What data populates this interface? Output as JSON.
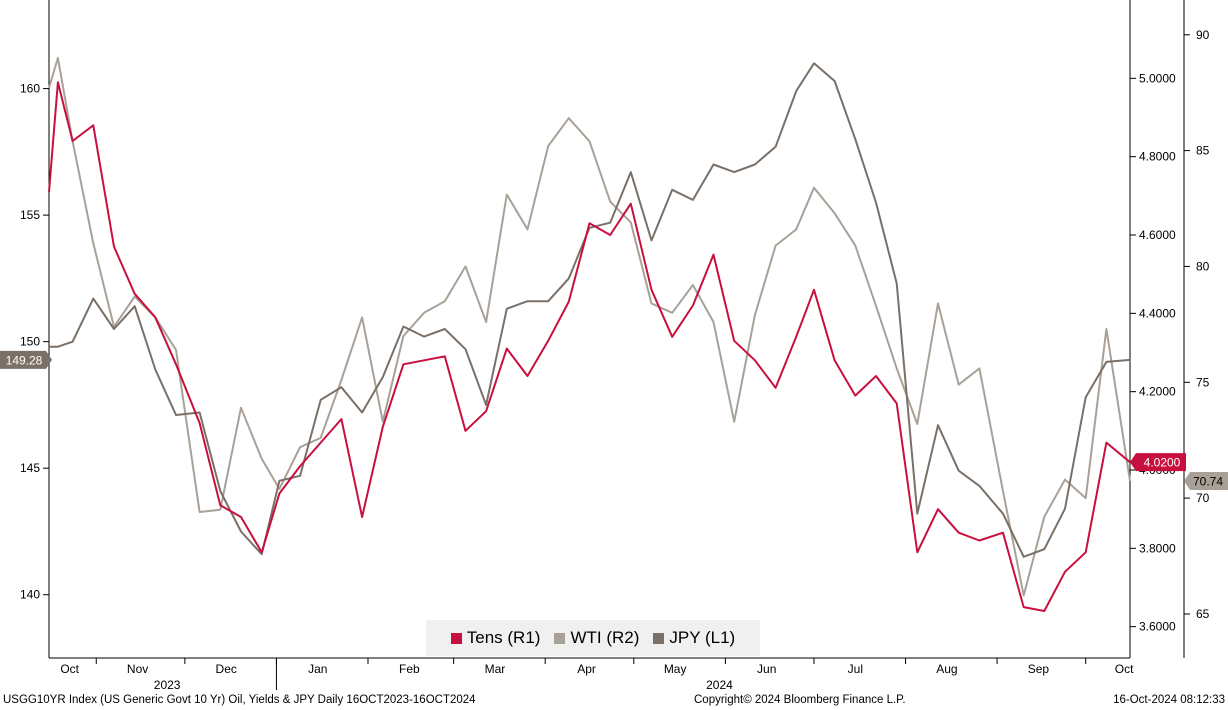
{
  "chart_data": {
    "type": "line",
    "x_tick_labels": [
      "Oct",
      "Nov",
      "Dec",
      "Jan",
      "Feb",
      "Mar",
      "Apr",
      "May",
      "Jun",
      "Jul",
      "Aug",
      "Sep",
      "Oct"
    ],
    "x_year_labels": [
      "2023",
      "2024"
    ],
    "x_start": "2023-10-16",
    "x_end": "2024-10-16",
    "axes": {
      "left": {
        "ticks": [
          "160",
          "155",
          "150",
          "145",
          "140"
        ],
        "range": [
          137.5,
          163.5
        ]
      },
      "right1": {
        "ticks": [
          "5.0000",
          "4.8000",
          "4.6000",
          "4.4000",
          "4.2000",
          "4.0000",
          "3.8000",
          "3.6000"
        ],
        "range": [
          3.52,
          5.2
        ]
      },
      "right2": {
        "ticks": [
          "90",
          "85",
          "80",
          "75",
          "70",
          "65"
        ],
        "range": [
          63.1,
          91.5
        ]
      }
    },
    "last_value_labels": {
      "JPY": "149.28",
      "Tens": "4.0200",
      "WTI": "70.74"
    },
    "series": [
      {
        "name": "Tens (R1)",
        "axis": "right1",
        "color": "#c8103e",
        "dates": [
          "2023-10-16",
          "2023-10-19",
          "2023-10-24",
          "2023-10-31",
          "2023-11-07",
          "2023-11-14",
          "2023-11-21",
          "2023-11-28",
          "2023-12-06",
          "2023-12-13",
          "2023-12-20",
          "2023-12-27",
          "2024-01-02",
          "2024-01-09",
          "2024-01-16",
          "2024-01-23",
          "2024-01-30",
          "2024-02-06",
          "2024-02-13",
          "2024-02-20",
          "2024-02-27",
          "2024-03-05",
          "2024-03-12",
          "2024-03-19",
          "2024-03-26",
          "2024-04-02",
          "2024-04-09",
          "2024-04-16",
          "2024-04-23",
          "2024-04-30",
          "2024-05-07",
          "2024-05-14",
          "2024-05-21",
          "2024-05-28",
          "2024-06-04",
          "2024-06-11",
          "2024-06-18",
          "2024-06-25",
          "2024-07-01",
          "2024-07-08",
          "2024-07-15",
          "2024-07-22",
          "2024-07-29",
          "2024-08-05",
          "2024-08-12",
          "2024-08-19",
          "2024-08-26",
          "2024-09-03",
          "2024-09-10",
          "2024-09-17",
          "2024-09-24",
          "2024-10-01",
          "2024-10-08",
          "2024-10-16"
        ],
        "values": [
          4.71,
          4.99,
          4.84,
          4.88,
          4.57,
          4.45,
          4.39,
          4.27,
          4.12,
          3.91,
          3.88,
          3.79,
          3.94,
          4.01,
          4.07,
          4.13,
          3.88,
          4.11,
          4.27,
          4.28,
          4.29,
          4.1,
          4.15,
          4.31,
          4.24,
          4.33,
          4.43,
          4.63,
          4.6,
          4.68,
          4.46,
          4.34,
          4.42,
          4.55,
          4.33,
          4.28,
          4.21,
          4.34,
          4.46,
          4.28,
          4.19,
          4.24,
          4.17,
          3.79,
          3.9,
          3.84,
          3.82,
          3.84,
          3.65,
          3.64,
          3.74,
          3.79,
          4.07,
          4.02
        ]
      },
      {
        "name": "WTI (R2)",
        "axis": "right2",
        "color": "#a9a197",
        "dates": [
          "2023-10-16",
          "2023-10-19",
          "2023-10-24",
          "2023-10-31",
          "2023-11-07",
          "2023-11-14",
          "2023-11-21",
          "2023-11-28",
          "2023-12-06",
          "2023-12-13",
          "2023-12-20",
          "2023-12-27",
          "2024-01-02",
          "2024-01-09",
          "2024-01-16",
          "2024-01-23",
          "2024-01-30",
          "2024-02-06",
          "2024-02-13",
          "2024-02-20",
          "2024-02-27",
          "2024-03-05",
          "2024-03-12",
          "2024-03-19",
          "2024-03-26",
          "2024-04-02",
          "2024-04-09",
          "2024-04-16",
          "2024-04-23",
          "2024-04-30",
          "2024-05-07",
          "2024-05-14",
          "2024-05-21",
          "2024-05-28",
          "2024-06-04",
          "2024-06-11",
          "2024-06-18",
          "2024-06-25",
          "2024-07-01",
          "2024-07-08",
          "2024-07-15",
          "2024-07-22",
          "2024-07-29",
          "2024-08-05",
          "2024-08-12",
          "2024-08-19",
          "2024-08-26",
          "2024-09-03",
          "2024-09-10",
          "2024-09-17",
          "2024-09-24",
          "2024-10-01",
          "2024-10-08",
          "2024-10-16"
        ],
        "values": [
          87.7,
          89.0,
          85.4,
          81.0,
          77.4,
          78.7,
          77.8,
          76.4,
          69.4,
          69.5,
          73.9,
          71.7,
          70.4,
          72.2,
          72.6,
          75.1,
          77.8,
          73.3,
          77.0,
          78.0,
          78.5,
          80.0,
          77.6,
          83.1,
          81.6,
          85.2,
          86.4,
          85.4,
          82.8,
          81.9,
          78.4,
          78.0,
          79.2,
          77.6,
          73.3,
          77.9,
          80.9,
          81.6,
          83.4,
          82.3,
          80.9,
          78.3,
          75.6,
          73.2,
          78.4,
          74.9,
          75.6,
          70.3,
          65.8,
          69.2,
          70.8,
          70.0,
          77.3,
          70.74
        ]
      },
      {
        "name": "JPY (L1)",
        "axis": "left",
        "color": "#7b7067",
        "dates": [
          "2023-10-16",
          "2023-10-19",
          "2023-10-24",
          "2023-10-31",
          "2023-11-07",
          "2023-11-14",
          "2023-11-21",
          "2023-11-28",
          "2023-12-06",
          "2023-12-13",
          "2023-12-20",
          "2023-12-27",
          "2024-01-02",
          "2024-01-09",
          "2024-01-16",
          "2024-01-23",
          "2024-01-30",
          "2024-02-06",
          "2024-02-13",
          "2024-02-20",
          "2024-02-27",
          "2024-03-05",
          "2024-03-12",
          "2024-03-19",
          "2024-03-26",
          "2024-04-02",
          "2024-04-09",
          "2024-04-16",
          "2024-04-23",
          "2024-04-30",
          "2024-05-07",
          "2024-05-14",
          "2024-05-21",
          "2024-05-28",
          "2024-06-04",
          "2024-06-11",
          "2024-06-18",
          "2024-06-25",
          "2024-07-01",
          "2024-07-08",
          "2024-07-15",
          "2024-07-22",
          "2024-07-29",
          "2024-08-05",
          "2024-08-12",
          "2024-08-19",
          "2024-08-26",
          "2024-09-03",
          "2024-09-10",
          "2024-09-17",
          "2024-09-24",
          "2024-10-01",
          "2024-10-08",
          "2024-10-16"
        ],
        "values": [
          149.8,
          149.8,
          150.0,
          151.7,
          150.5,
          151.4,
          148.9,
          147.1,
          147.2,
          144.1,
          142.5,
          141.6,
          144.5,
          144.7,
          147.7,
          148.2,
          147.2,
          148.6,
          150.6,
          150.2,
          150.5,
          149.7,
          147.5,
          151.3,
          151.6,
          151.6,
          152.5,
          154.5,
          154.7,
          156.7,
          154.0,
          156.0,
          155.6,
          157.0,
          156.7,
          157.0,
          157.7,
          159.9,
          161.0,
          160.3,
          158.0,
          155.5,
          152.3,
          143.2,
          146.7,
          144.9,
          144.3,
          143.2,
          141.5,
          141.8,
          143.4,
          147.8,
          149.2,
          149.28
        ]
      }
    ],
    "legend_placement": "bottom-center",
    "grid": false
  },
  "legend": [
    {
      "label": "Tens (R1)",
      "color": "#c8103e"
    },
    {
      "label": "WTI (R2)",
      "color": "#a9a197"
    },
    {
      "label": "JPY (L1)",
      "color": "#7b7067"
    }
  ],
  "footer": {
    "left": "USGG10YR Index (US Generic Govt 10 Yr) Oil, Yields & JPY  Daily 16OCT2023-16OCT2024",
    "center": "Copyright© 2024 Bloomberg Finance L.P.",
    "right": "16-Oct-2024 08:12:33"
  }
}
